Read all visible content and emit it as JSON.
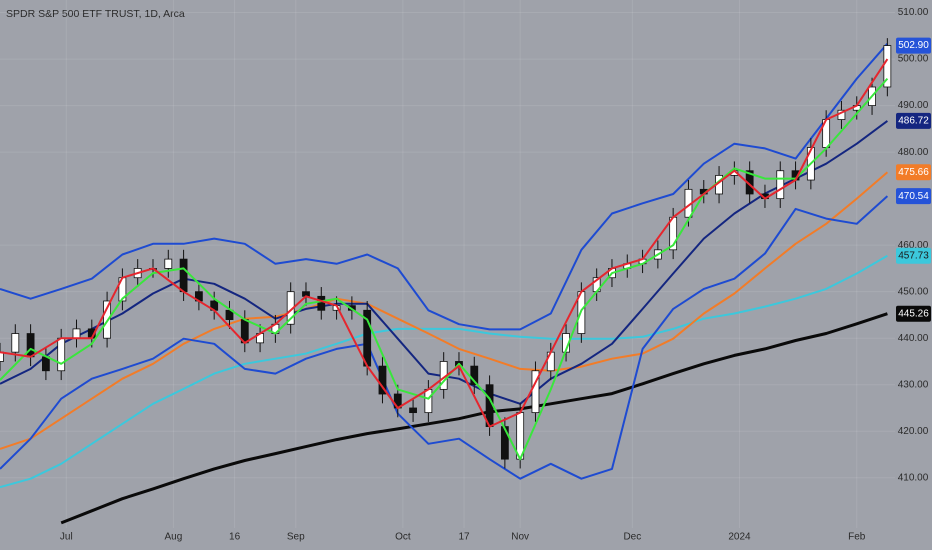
{
  "chart_data": {
    "type": "candlestick",
    "title": "SPDR S&P 500 ETF TRUST, 1D, Arca",
    "background": "#9fa2aa",
    "grid": true,
    "up_color": "#ffffff",
    "down_color": "#111111",
    "xlim": [
      0,
      175.5
    ],
    "ylim": [
      399.2,
      512.7
    ],
    "xticks": [
      {
        "value": 13,
        "label": "Jul"
      },
      {
        "value": 34,
        "label": "Aug"
      },
      {
        "value": 46,
        "label": "16"
      },
      {
        "value": 58,
        "label": "Sep"
      },
      {
        "value": 79,
        "label": "Oct"
      },
      {
        "value": 91,
        "label": "17"
      },
      {
        "value": 102,
        "label": "Nov"
      },
      {
        "value": 124,
        "label": "Dec"
      },
      {
        "value": 145,
        "label": "2024"
      },
      {
        "value": 168,
        "label": "Feb"
      }
    ],
    "yticks": [
      {
        "value": 410,
        "label": "410.00"
      },
      {
        "value": 420,
        "label": "420.00"
      },
      {
        "value": 430,
        "label": "430.00"
      },
      {
        "value": 440,
        "label": "440.00"
      },
      {
        "value": 450,
        "label": "450.00"
      },
      {
        "value": 460,
        "label": "460.00"
      },
      {
        "value": 480,
        "label": "480.00"
      },
      {
        "value": 490,
        "label": "490.00"
      },
      {
        "value": 500,
        "label": "500.00"
      },
      {
        "value": 510,
        "label": "510.00"
      }
    ],
    "x": [
      0,
      3,
      6,
      9,
      12,
      15,
      18,
      21,
      24,
      27,
      30,
      33,
      36,
      39,
      42,
      45,
      48,
      51,
      54,
      57,
      60,
      63,
      66,
      69,
      72,
      75,
      78,
      81,
      84,
      87,
      90,
      93,
      96,
      99,
      102,
      105,
      108,
      111,
      114,
      117,
      120,
      123,
      126,
      129,
      132,
      135,
      138,
      141,
      144,
      147,
      150,
      153,
      156,
      159,
      162,
      165,
      168,
      171,
      174
    ],
    "open": [
      435,
      437,
      441,
      436,
      433,
      440,
      442,
      440,
      448,
      453,
      455,
      455,
      457,
      450,
      448,
      446,
      444,
      439,
      441,
      443,
      450,
      449,
      446,
      447,
      446,
      434,
      428,
      425,
      424,
      429,
      435,
      434,
      430,
      421,
      414,
      424,
      433,
      437,
      441,
      450,
      453,
      455,
      456,
      457,
      459,
      466,
      472,
      471,
      475,
      476,
      471,
      470,
      476,
      474,
      481,
      487,
      489,
      490,
      494
    ],
    "high": [
      439,
      443,
      443,
      438,
      442,
      444,
      444,
      450,
      455,
      457,
      457,
      459,
      459,
      452,
      450,
      448,
      446,
      443,
      445,
      452,
      452,
      451,
      449,
      449,
      448,
      436,
      430,
      427,
      431,
      437,
      437,
      436,
      432,
      423,
      426,
      435,
      439,
      443,
      452,
      455,
      457,
      458,
      459,
      461,
      468,
      474,
      474,
      477,
      478,
      478,
      473,
      478,
      478,
      483,
      489,
      491,
      492,
      496,
      504.5
    ],
    "low": [
      433,
      435,
      434,
      431,
      431,
      438,
      438,
      438,
      446,
      451,
      453,
      453,
      448,
      446,
      444,
      442,
      437,
      437,
      439,
      441,
      447,
      444,
      444,
      444,
      432,
      426,
      423,
      422,
      422,
      427,
      432,
      428,
      419,
      412,
      412,
      422,
      431,
      435,
      439,
      448,
      451,
      453,
      454,
      455,
      457,
      464,
      469,
      469,
      473,
      469,
      468,
      468,
      472,
      472,
      479,
      485,
      487,
      488,
      492
    ],
    "close": [
      437,
      441,
      436,
      433,
      440,
      442,
      440,
      448,
      453,
      455,
      455,
      457,
      450,
      448,
      446,
      444,
      439,
      441,
      443,
      450,
      449,
      446,
      447,
      446,
      434,
      428,
      425,
      424,
      429,
      435,
      434,
      430,
      421,
      414,
      424,
      433,
      437,
      441,
      450,
      453,
      455,
      456,
      457,
      459,
      466,
      472,
      471,
      475,
      476,
      471,
      470,
      476,
      474,
      481,
      487,
      489,
      490,
      494,
      502.9
    ],
    "overlay_x": [
      0,
      6,
      12,
      18,
      24,
      30,
      36,
      42,
      48,
      54,
      60,
      66,
      72,
      78,
      84,
      90,
      96,
      102,
      108,
      114,
      120,
      126,
      132,
      138,
      144,
      150,
      156,
      162,
      168,
      174
    ],
    "overlays": [
      {
        "color": "#0a0a0a",
        "width": 3,
        "values": [
          null,
          null,
          400.3,
          402.9,
          405.5,
          407.6,
          409.8,
          411.9,
          413.7,
          415.2,
          416.7,
          418.2,
          419.5,
          420.5,
          421.6,
          422.7,
          424.2,
          424.8,
          425.9,
          427,
          428.1,
          430.2,
          432.4,
          434.5,
          436.3,
          437.7,
          439.5,
          441,
          443.1,
          445.26
        ]
      },
      {
        "color": "#3cc8dc",
        "width": 2,
        "values": [
          408,
          409.8,
          413,
          417.3,
          421.6,
          425.9,
          429.1,
          432.4,
          434.5,
          435.6,
          436.7,
          438.8,
          441,
          442,
          442,
          442,
          441,
          440.3,
          439.9,
          439.9,
          439.9,
          440.3,
          442,
          444.2,
          445.3,
          446.8,
          448.5,
          450.6,
          453.9,
          457.73
        ]
      },
      {
        "color": "#f27c28",
        "width": 2,
        "values": [
          416.2,
          418.4,
          422.7,
          427,
          431.3,
          434.5,
          438.8,
          442,
          444.2,
          444.6,
          446.3,
          448.5,
          447.4,
          444.2,
          441,
          437.7,
          435.6,
          433.4,
          433,
          433.9,
          435.6,
          436.7,
          439.9,
          445.3,
          449.6,
          455,
          460.3,
          464.6,
          470,
          475.66
        ]
      },
      {
        "color": "#1e4bd1",
        "width": 2,
        "values": [
          450.6,
          448.5,
          450.6,
          452.8,
          458,
          460.3,
          460.3,
          461.4,
          460.3,
          456,
          457,
          456,
          458,
          455,
          446,
          443,
          441.9,
          441.9,
          445.3,
          459,
          466.8,
          469,
          471,
          477.5,
          481.8,
          480.8,
          478.6,
          487.2,
          495.8,
          503.3
        ]
      },
      {
        "color": "#1e4bd1",
        "width": 2,
        "values": [
          411.9,
          418.4,
          427,
          431.3,
          433.4,
          435.6,
          439.9,
          438.8,
          433.4,
          432.4,
          435.6,
          437.7,
          438.8,
          423.8,
          417.3,
          418.4,
          414,
          409.8,
          413,
          409.8,
          411.9,
          437.7,
          446.3,
          450.6,
          452.8,
          458.2,
          467.8,
          465.7,
          464.6,
          470.54
        ]
      },
      {
        "color": "#142680",
        "width": 2,
        "values": [
          430.2,
          433.4,
          438.8,
          442,
          445.3,
          449.6,
          452.8,
          451.7,
          448.5,
          444.2,
          446.3,
          447.4,
          447.4,
          439.9,
          432.4,
          431.3,
          428.1,
          425.9,
          431.3,
          434.5,
          438.8,
          446.3,
          453.9,
          461.4,
          466.8,
          471.1,
          474.3,
          477.5,
          481.8,
          486.72
        ]
      },
      {
        "color": "#39e63c",
        "width": 2,
        "values": [
          431,
          437.7,
          434.5,
          438.8,
          448.5,
          454,
          455,
          448.5,
          444,
          441,
          447.4,
          448.5,
          444,
          429,
          427,
          434.5,
          427,
          414,
          429,
          446,
          454,
          456,
          460,
          471,
          476.5,
          474.3,
          474.3,
          480.8,
          488.3,
          495.8
        ]
      },
      {
        "color": "#e5262e",
        "width": 2,
        "values": [
          437,
          436,
          440,
          440,
          453,
          455,
          450,
          446,
          439,
          443,
          449,
          447,
          434,
          425,
          429,
          434,
          421,
          424,
          437,
          450,
          455,
          457,
          466,
          471,
          476,
          470,
          474,
          487,
          490,
          500
        ]
      }
    ],
    "price_labels": [
      {
        "value": 502.9,
        "label": "502.90",
        "color": "#2553d8",
        "text_color": "#ffffff"
      },
      {
        "value": 486.72,
        "label": "486.72",
        "color": "#142680",
        "text_color": "#ffffff"
      },
      {
        "value": 475.66,
        "label": "475.66",
        "color": "#f27c28",
        "text_color": "#ffffff"
      },
      {
        "value": 470.54,
        "label": "470.54",
        "color": "#2553d8",
        "text_color": "#ffffff"
      },
      {
        "value": 457.73,
        "label": "457.73",
        "color": "#3cc8dc",
        "text_color": "#1a1a1a"
      },
      {
        "value": 445.26,
        "label": "445.26",
        "color": "#0a0a0a",
        "text_color": "#ffffff"
      }
    ]
  }
}
